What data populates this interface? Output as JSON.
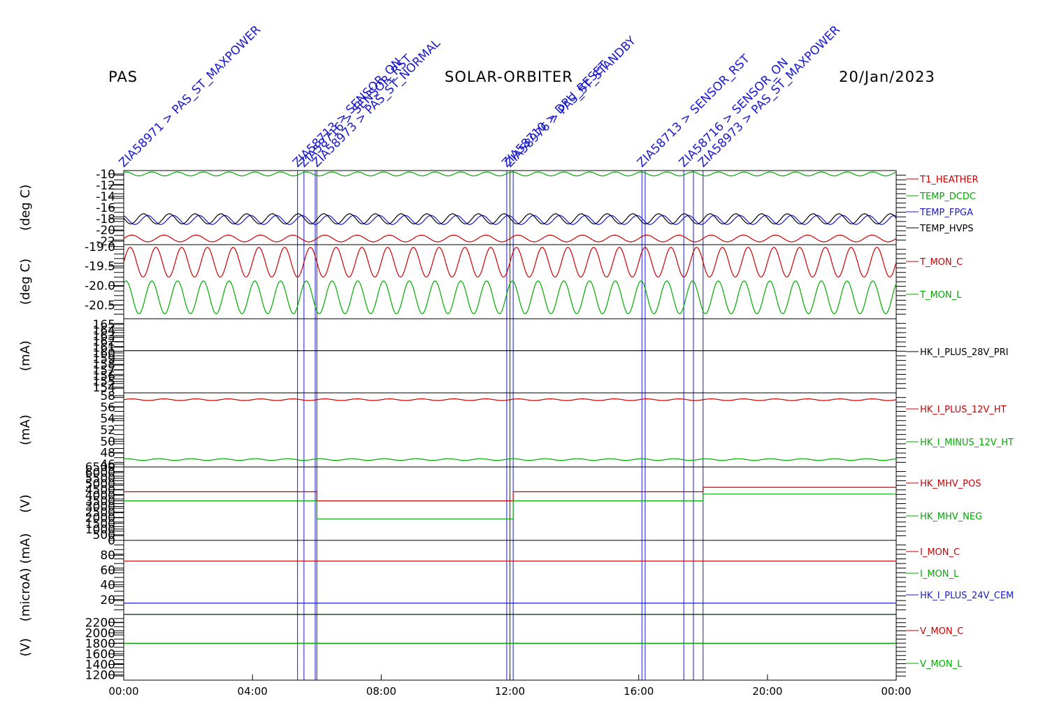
{
  "header": {
    "left": "PAS",
    "center": "SOLAR-ORBITER",
    "right": "20/Jan/2023"
  },
  "colors": {
    "red": "#cc0000",
    "green": "#00aa00",
    "blue": "#1a1acc",
    "black": "#000000",
    "annotation": "#1a1acc"
  },
  "chart_data": {
    "type": "line",
    "x_range": [
      "20/Jan/2023 00:00",
      "21/Jan/2023 00:00"
    ],
    "x_ticks": [
      "00:00",
      "04:00",
      "08:00",
      "12:00",
      "16:00",
      "20:00",
      "00:00"
    ],
    "event_times_hours": [
      0.0,
      5.4,
      5.6,
      5.95,
      6.0,
      11.9,
      12.0,
      12.1,
      16.1,
      16.2,
      17.4,
      17.7,
      18.0
    ],
    "event_labels": [
      {
        "hour": 0.0,
        "text": "ZIA58971 > PAS_ST_MAXPOWER"
      },
      {
        "hour": 5.4,
        "text": "ZIA58713 > SENSOR_ON"
      },
      {
        "hour": 5.6,
        "text": "ZIA58716 > SENSOR_RST"
      },
      {
        "hour": 6.0,
        "text": "ZIA58973 > PAS_ST_NORMAL"
      },
      {
        "hour": 11.9,
        "text": "ZIA58710 > DPU_RESET"
      },
      {
        "hour": 12.0,
        "text": "ZIA58976 > PAS_ST_STANDBY"
      },
      {
        "hour": 16.1,
        "text": "ZIA58713 > SENSOR_RST"
      },
      {
        "hour": 17.4,
        "text": "ZIA58716 > SENSOR_ON"
      },
      {
        "hour": 18.0,
        "text": "ZIA58973 > PAS_ST_MAXPOWER"
      }
    ],
    "panels": [
      {
        "ylabel": "(deg C)",
        "ylim": [
          -22.6,
          -9.4
        ],
        "ticks": [
          -10,
          -12,
          -14,
          -16,
          -18,
          -20,
          -22
        ],
        "series": [
          {
            "name": "T1_HEATHER",
            "color": "#cc0000",
            "mean": -21.5,
            "amp": 0.6,
            "cycles": 24
          },
          {
            "name": "TEMP_DCDC",
            "color": "#00aa00",
            "mean": -10.0,
            "amp": 0.35,
            "cycles": 30
          },
          {
            "name": "TEMP_FPGA",
            "color": "#1a1acc",
            "mean": -18.2,
            "amp": 0.8,
            "cycles": 30
          },
          {
            "name": "TEMP_HVPS",
            "color": "#000000",
            "mean": -18.0,
            "amp": 0.9,
            "cycles": 30
          }
        ]
      },
      {
        "ylabel": "(deg C)",
        "ylim": [
          -20.85,
          -18.95
        ],
        "ticks": [
          -19.0,
          -19.5,
          -20.0,
          -20.5
        ],
        "series": [
          {
            "name": "T_MON_C",
            "color": "#cc0000",
            "mean": -19.4,
            "amp": 0.38,
            "cycles": 30
          },
          {
            "name": "T_MON_L",
            "color": "#00aa00",
            "mean": -20.3,
            "amp": 0.42,
            "cycles": 30
          }
        ]
      },
      {
        "ylabel": "(mA)",
        "ylim": [
          153,
          166
        ],
        "ticks": [
          165,
          164,
          163,
          162,
          161,
          160,
          159,
          158,
          157,
          156,
          155,
          154
        ],
        "series": [
          {
            "name": "HK_I_PLUS_28V_PRI",
            "color": "#000000",
            "mean": 160.4,
            "amp": 0.05,
            "cycles": 0
          }
        ]
      },
      {
        "ylabel": "(mA)",
        "ylim": [
          45.5,
          58.5
        ],
        "ticks": [
          58,
          56,
          54,
          52,
          50,
          48,
          46
        ],
        "series": [
          {
            "name": "HK_I_PLUS_12V_HT",
            "color": "#cc0000",
            "mean": 57.3,
            "amp": 0.15,
            "cycles": 24
          },
          {
            "name": "HK_I_MINUS_12V_HT",
            "color": "#00aa00",
            "mean": 46.8,
            "amp": 0.15,
            "cycles": 24
          }
        ]
      },
      {
        "ylabel": "(V)",
        "ylim": [
          0,
          6500
        ],
        "ticks": [
          6500,
          6000,
          5500,
          5000,
          4500,
          4000,
          3500,
          3000,
          2500,
          2000,
          1500,
          1000,
          500,
          0
        ],
        "series": [
          {
            "name": "HK_MHV_POS",
            "color": "#cc0000",
            "steps": [
              [
                0,
                4300
              ],
              [
                6.0,
                3500
              ],
              [
                12.1,
                4300
              ],
              [
                18.0,
                4700
              ]
            ]
          },
          {
            "name": "HK_MHV_NEG",
            "color": "#00aa00",
            "steps": [
              [
                0,
                3500
              ],
              [
                6.0,
                1900
              ],
              [
                12.1,
                3500
              ],
              [
                18.0,
                4100
              ]
            ]
          }
        ]
      },
      {
        "ylabel": "(microA) (mA)",
        "ylim": [
          0,
          100
        ],
        "ticks": [
          80,
          60,
          40,
          20
        ],
        "series": [
          {
            "name": "I_MON_C",
            "color": "#cc0000",
            "mean": 72,
            "amp": 0.3,
            "cycles": 0
          },
          {
            "name": "I_MON_L",
            "color": "#00aa00",
            "mean": 0,
            "amp": 0,
            "cycles": 0
          },
          {
            "name": "HK_I_PLUS_24V_CEM",
            "color": "#1a1acc",
            "mean": 15,
            "amp": 0.2,
            "cycles": 0
          }
        ]
      },
      {
        "ylabel": "(V)",
        "ylim": [
          1100,
          2350
        ],
        "ticks": [
          2200,
          2000,
          1800,
          1600,
          1400,
          1200
        ],
        "series": [
          {
            "name": "V_MON_C",
            "color": "#cc0000",
            "mean": 1800,
            "amp": 0,
            "cycles": 0
          },
          {
            "name": "V_MON_L",
            "color": "#00aa00",
            "mean": 1800,
            "amp": 0,
            "cycles": 0
          }
        ]
      }
    ]
  }
}
